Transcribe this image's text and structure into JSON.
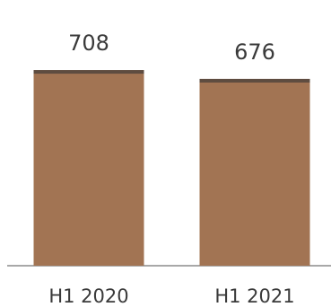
{
  "chart_data": {
    "type": "bar",
    "categories": [
      "H1 2020",
      "H1 2021"
    ],
    "values": [
      708,
      676
    ],
    "data_labels": [
      "708",
      "676"
    ],
    "title": "",
    "xlabel": "",
    "ylabel": "",
    "ylim": [
      0,
      770
    ],
    "grid": false,
    "legend": "none",
    "colors": {
      "bar_fill": "#a27453",
      "bar_top": "#5e4c40",
      "baseline": "#8c8c8c"
    }
  }
}
